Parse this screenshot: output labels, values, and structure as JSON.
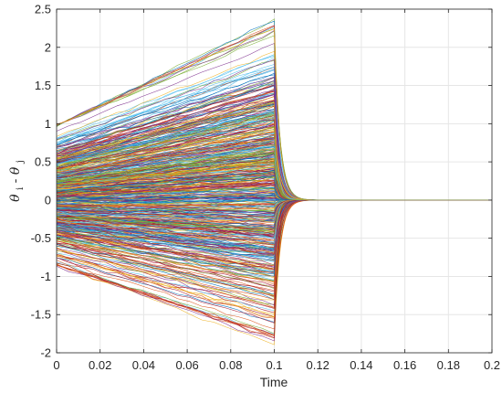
{
  "chart_data": {
    "type": "line",
    "title": "",
    "xlabel": "Time",
    "ylabel": {
      "theta": "θ",
      "sub_i": "i",
      "minus": "-",
      "sub_j": "j"
    },
    "xlim": [
      0,
      0.2
    ],
    "ylim": [
      -2,
      2.5
    ],
    "xticks": [
      0,
      0.02,
      0.04,
      0.06,
      0.08,
      0.1,
      0.12,
      0.14,
      0.16,
      0.18,
      0.2
    ],
    "yticks": [
      -2,
      -1.5,
      -1,
      -0.5,
      0,
      0.5,
      1,
      1.5,
      2,
      2.5
    ],
    "xtick_labels": [
      "0",
      "0.02",
      "0.04",
      "0.06",
      "0.08",
      "0.1",
      "0.12",
      "0.14",
      "0.16",
      "0.18",
      "0.2"
    ],
    "ytick_labels": [
      "-2",
      "-1.5",
      "-1",
      "-0.5",
      "0",
      "0.5",
      "1",
      "1.5",
      "2",
      "2.5"
    ],
    "grid": true,
    "legend": "none",
    "series_count": 600,
    "switch_time": 0.1,
    "settle_time": 0.12,
    "peak_upper": 2.27,
    "peak_lower": -1.82,
    "initial_spread": [
      -0.85,
      0.98
    ],
    "final_value": 0,
    "colors": [
      "#0072BD",
      "#D95319",
      "#EDB120",
      "#7E2F8E",
      "#77AC30",
      "#4DBEEE",
      "#A2142F"
    ]
  }
}
